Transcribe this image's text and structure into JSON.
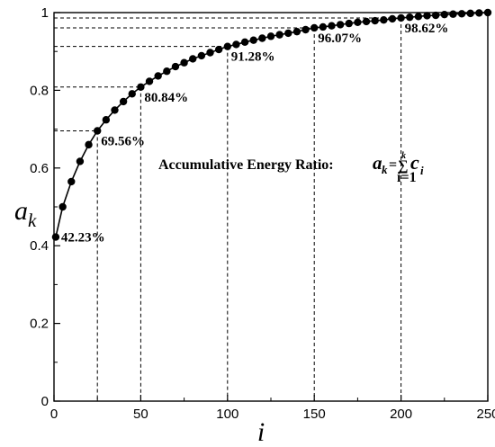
{
  "chart_data": {
    "type": "line",
    "xlabel": "i",
    "ylabel_main": "a",
    "ylabel_sub": "k",
    "xlim": [
      0,
      250
    ],
    "ylim": [
      0,
      1
    ],
    "x_ticks": [
      "0",
      "50",
      "100",
      "150",
      "200",
      "250"
    ],
    "y_ticks": [
      "0",
      "0.2",
      "0.4",
      "0.6",
      "0.8",
      "1"
    ],
    "grid": false,
    "annotation": {
      "text": "Accumulative Energy Ratio:",
      "formula_a": "a",
      "formula_a_sub": "k",
      "formula_eq": "=",
      "formula_sum": "∑",
      "formula_sum_top": "k",
      "formula_sum_bottom": "i=1",
      "formula_c": "c",
      "formula_c_sub": "i"
    },
    "series": [
      {
        "marker": "circle",
        "color": "#000000",
        "x": [
          1,
          5,
          10,
          15,
          20,
          25,
          30,
          35,
          40,
          45,
          50,
          55,
          60,
          65,
          70,
          75,
          80,
          85,
          90,
          95,
          100,
          105,
          110,
          115,
          120,
          125,
          130,
          135,
          140,
          145,
          150,
          155,
          160,
          165,
          170,
          175,
          180,
          185,
          190,
          195,
          200,
          205,
          210,
          215,
          220,
          225,
          230,
          235,
          240,
          245,
          250
        ],
        "y": [
          0.4223,
          0.5,
          0.565,
          0.617,
          0.66,
          0.6956,
          0.724,
          0.749,
          0.771,
          0.791,
          0.8084,
          0.823,
          0.837,
          0.849,
          0.861,
          0.871,
          0.881,
          0.889,
          0.897,
          0.905,
          0.9128,
          0.918,
          0.924,
          0.929,
          0.934,
          0.939,
          0.943,
          0.947,
          0.951,
          0.956,
          0.9607,
          0.963,
          0.966,
          0.969,
          0.972,
          0.975,
          0.977,
          0.979,
          0.981,
          0.984,
          0.9862,
          0.988,
          0.99,
          0.992,
          0.993,
          0.995,
          0.996,
          0.997,
          0.998,
          0.999,
          1.0
        ]
      }
    ],
    "markers": [
      {
        "x": 1,
        "y": 0.4223,
        "label": "42.23%",
        "vline": false,
        "hline": false
      },
      {
        "x": 25,
        "y": 0.6956,
        "label": "69.56%",
        "vline": true,
        "hline": true
      },
      {
        "x": 50,
        "y": 0.8084,
        "label": "80.84%",
        "vline": true,
        "hline": true
      },
      {
        "x": 100,
        "y": 0.9128,
        "label": "91.28%",
        "vline": true,
        "hline": true
      },
      {
        "x": 150,
        "y": 0.9607,
        "label": "96.07%",
        "vline": true,
        "hline": true
      },
      {
        "x": 200,
        "y": 0.9862,
        "label": "98.62%",
        "vline": true,
        "hline": true
      }
    ]
  }
}
